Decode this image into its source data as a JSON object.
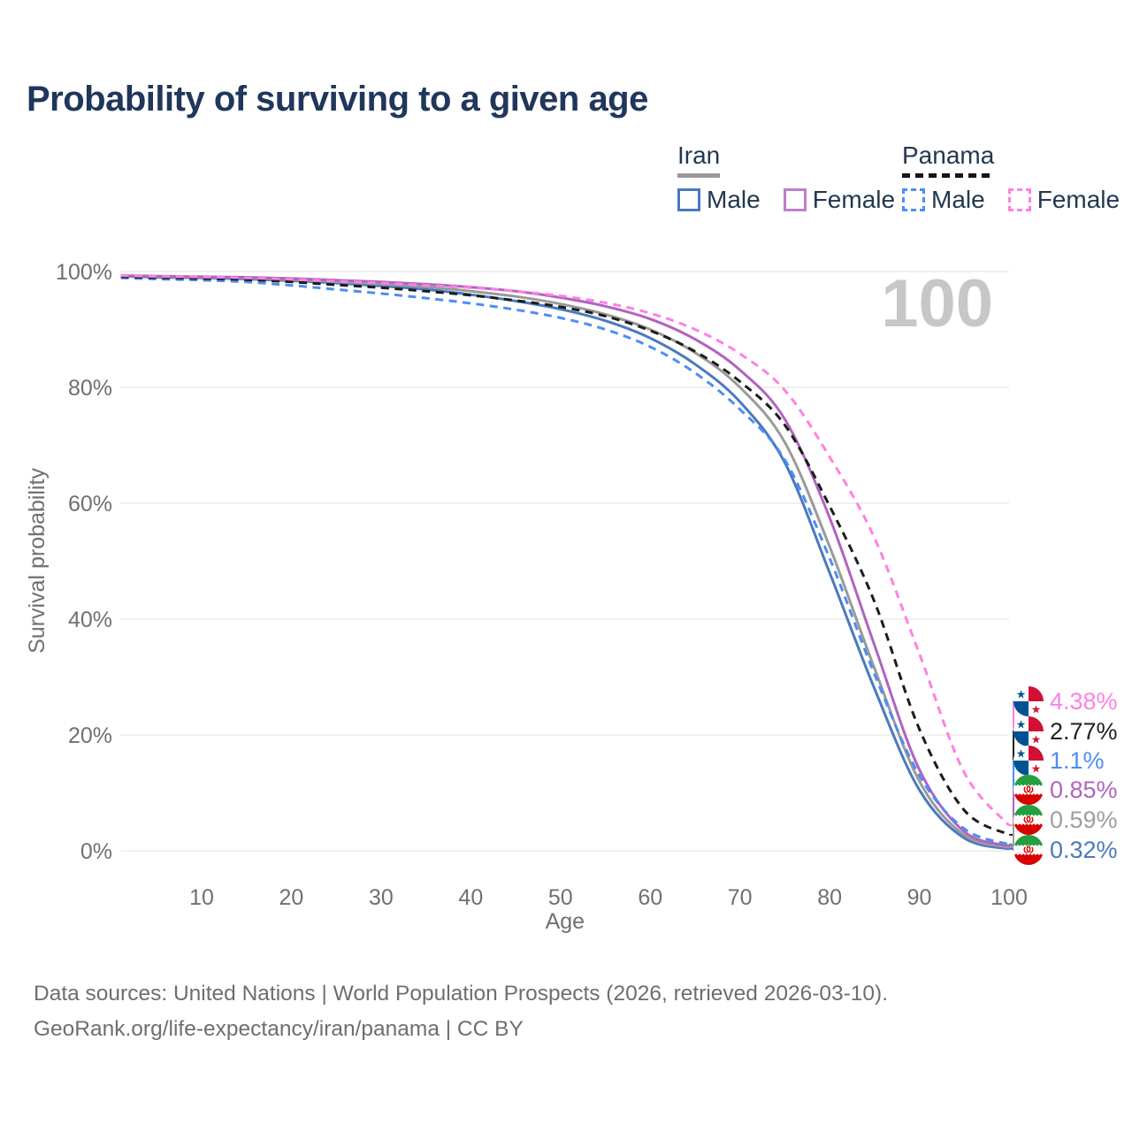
{
  "title": "Probability of surviving to a given age",
  "watermark": "100",
  "legend": {
    "groups": [
      {
        "name": "Iran",
        "line_style": "solid",
        "underline_color": "#9a9a9a",
        "items": [
          {
            "label": "Male",
            "color": "#4a79be",
            "dash": "solid"
          },
          {
            "label": "Female",
            "color": "#c07fcb",
            "dash": "solid"
          }
        ]
      },
      {
        "name": "Panama",
        "line_style": "dashed",
        "underline_color": "#151515",
        "items": [
          {
            "label": "Male",
            "color": "#4d8df5",
            "dash": "dashed"
          },
          {
            "label": "Female",
            "color": "#ff80e3",
            "dash": "dashed"
          }
        ]
      }
    ]
  },
  "footer": {
    "line1": "Data sources: United Nations | World Population Prospects (2026, retrieved 2026-03-10).",
    "line2": "GeoRank.org/life-expectancy/iran/panama | CC BY"
  },
  "flag_colors": {
    "panama": {
      "red": "#d21034",
      "blue": "#005293",
      "white": "#ffffff"
    },
    "iran": {
      "green": "#239f40",
      "white": "#ffffff",
      "red": "#da0000"
    }
  },
  "chart_data": {
    "type": "line",
    "title": "Probability of surviving to a given age",
    "xlabel": "Age",
    "ylabel": "Survival probability",
    "xlim": [
      1,
      100
    ],
    "ylim": [
      0,
      100
    ],
    "xticks": [
      10,
      20,
      30,
      40,
      50,
      60,
      70,
      80,
      90,
      100
    ],
    "yticks": [
      0,
      20,
      40,
      60,
      80,
      100
    ],
    "ytick_suffix": "%",
    "grid": "horizontal",
    "legend_position": "top-right",
    "x": [
      1,
      5,
      10,
      15,
      20,
      25,
      30,
      35,
      40,
      45,
      50,
      55,
      60,
      65,
      70,
      75,
      80,
      85,
      90,
      95,
      100
    ],
    "series": [
      {
        "id": "iran_male",
        "name": "Iran Male",
        "country": "iran",
        "sex": "male",
        "color": "#4a79be",
        "dash": "solid",
        "values": [
          99.2,
          99.0,
          98.9,
          98.7,
          98.4,
          98.0,
          97.5,
          96.9,
          96.0,
          94.9,
          93.5,
          91.5,
          88.5,
          84.0,
          77.5,
          67.0,
          48.0,
          28.0,
          10.5,
          2.2,
          0.32
        ]
      },
      {
        "id": "iran_total",
        "name": "Iran",
        "country": "iran",
        "sex": "total",
        "color": "#9a9a9a",
        "dash": "solid",
        "values": [
          99.25,
          99.1,
          99.0,
          98.85,
          98.6,
          98.25,
          97.85,
          97.35,
          96.6,
          95.7,
          94.4,
          92.6,
          90.0,
          86.0,
          80.0,
          70.5,
          52.5,
          31.5,
          12.0,
          2.7,
          0.59
        ]
      },
      {
        "id": "iran_female",
        "name": "Iran Female",
        "country": "iran",
        "sex": "female",
        "color": "#b163c1",
        "dash": "solid",
        "values": [
          99.3,
          99.2,
          99.1,
          99.0,
          98.8,
          98.5,
          98.2,
          97.8,
          97.3,
          96.6,
          95.5,
          94.0,
          91.8,
          88.3,
          83.0,
          74.5,
          57.5,
          35.5,
          14.0,
          3.3,
          0.85
        ]
      },
      {
        "id": "panama_male",
        "name": "Panama Male",
        "country": "panama",
        "sex": "male",
        "color": "#4d8df5",
        "dash": "dashed",
        "values": [
          98.9,
          98.7,
          98.5,
          98.2,
          97.6,
          96.9,
          96.2,
          95.4,
          94.5,
          93.4,
          92.0,
          90.0,
          87.0,
          82.5,
          76.2,
          67.5,
          50.5,
          30.5,
          13.0,
          3.8,
          1.1
        ]
      },
      {
        "id": "panama_total",
        "name": "Panama",
        "country": "panama",
        "sex": "total",
        "color": "#1c1c1c",
        "dash": "dashed",
        "values": [
          99.1,
          98.95,
          98.8,
          98.6,
          98.2,
          97.7,
          97.2,
          96.6,
          95.9,
          95.0,
          93.9,
          92.3,
          89.8,
          86.2,
          81.0,
          73.5,
          59.5,
          43.0,
          21.0,
          7.0,
          2.77
        ]
      },
      {
        "id": "panama_female",
        "name": "Panama Female",
        "country": "panama",
        "sex": "female",
        "color": "#ff80e3",
        "dash": "dashed",
        "values": [
          99.3,
          99.15,
          99.05,
          98.9,
          98.65,
          98.35,
          98.0,
          97.6,
          97.2,
          96.6,
          95.8,
          94.6,
          92.8,
          90.0,
          85.8,
          79.5,
          68.0,
          54.0,
          34.0,
          13.5,
          4.38
        ]
      }
    ],
    "end_labels": [
      {
        "series": "panama_female",
        "value": "4.38%",
        "color": "#ff80e3",
        "flag": "panama"
      },
      {
        "series": "panama_total",
        "value": "2.77%",
        "color": "#212121",
        "flag": "panama"
      },
      {
        "series": "panama_male",
        "value": "1.1%",
        "color": "#4d8df5",
        "flag": "panama"
      },
      {
        "series": "iran_female",
        "value": "0.85%",
        "color": "#b163c1",
        "flag": "iran"
      },
      {
        "series": "iran_total",
        "value": "0.59%",
        "color": "#9e9e9e",
        "flag": "iran"
      },
      {
        "series": "iran_male",
        "value": "0.32%",
        "color": "#4a79be",
        "flag": "iran"
      }
    ]
  }
}
